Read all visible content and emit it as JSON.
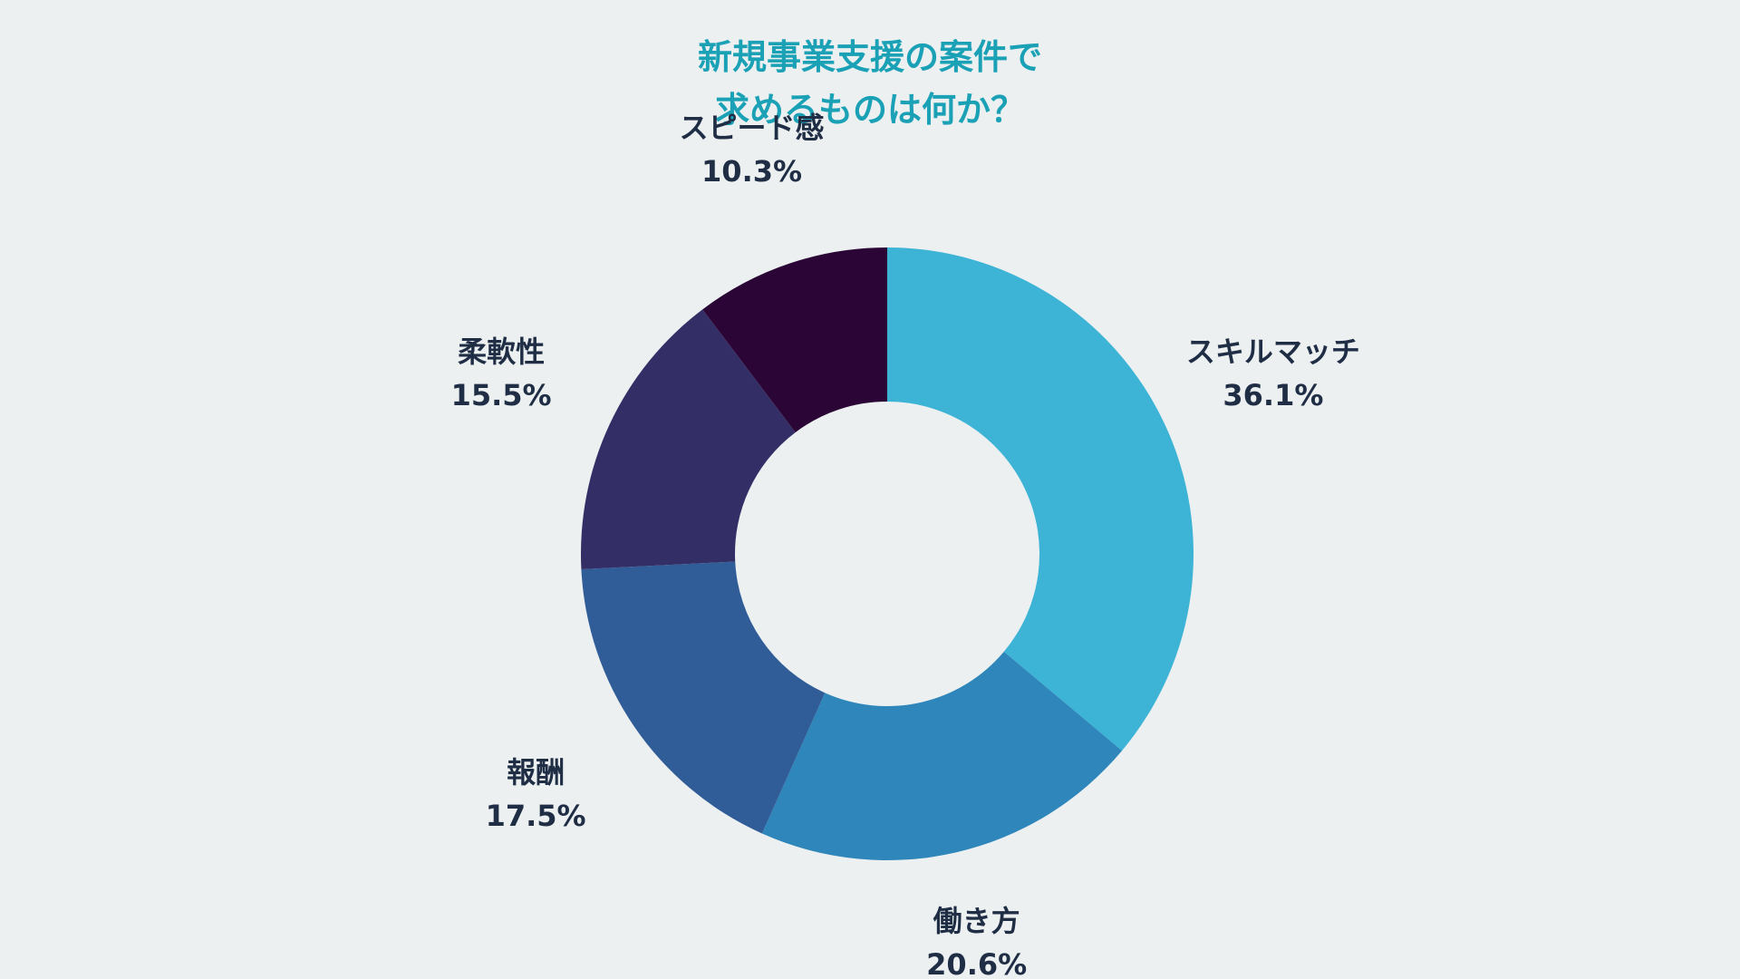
{
  "title": {
    "line1": "新規事業支援の案件で",
    "line2": "求めるものは何か？"
  },
  "chart_data": {
    "type": "pie",
    "donut": true,
    "title": "新規事業支援の案件で求めるものは何か？",
    "unit": "%",
    "slices": [
      {
        "label": "スキルマッチ",
        "value": 36.1,
        "value_label": "36.1%",
        "color": "#3db4d6"
      },
      {
        "label": "働き方",
        "value": 20.6,
        "value_label": "20.6%",
        "color": "#2e86bb"
      },
      {
        "label": "報酬",
        "value": 17.5,
        "value_label": "17.5%",
        "color": "#305d97"
      },
      {
        "label": "柔軟性",
        "value": 15.5,
        "value_label": "15.5%",
        "color": "#332e66"
      },
      {
        "label": "スピード感",
        "value": 10.3,
        "value_label": "10.3%",
        "color": "#2a0536"
      }
    ],
    "legend": "none"
  }
}
